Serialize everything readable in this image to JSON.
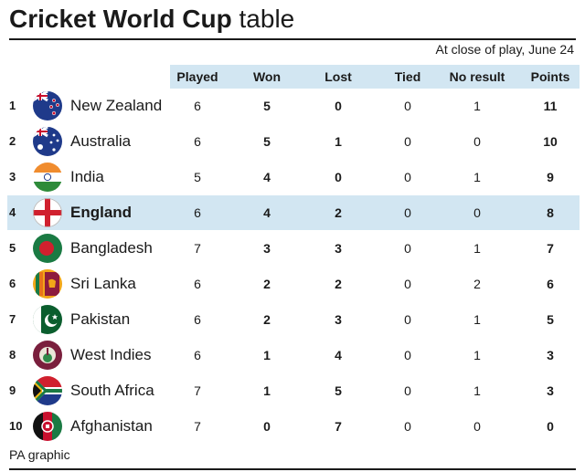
{
  "title": {
    "bold": "Cricket World Cup",
    "light": "table"
  },
  "subtitle": "At close of play, June 24",
  "columns": [
    "Played",
    "Won",
    "Lost",
    "Tied",
    "No result",
    "Points"
  ],
  "rows": [
    {
      "rank": "1",
      "team": "New Zealand",
      "flag": "new-zealand-flag-icon",
      "played": "6",
      "won": "5",
      "lost": "0",
      "tied": "0",
      "no_result": "1",
      "points": "11"
    },
    {
      "rank": "2",
      "team": "Australia",
      "flag": "australia-flag-icon",
      "played": "6",
      "won": "5",
      "lost": "1",
      "tied": "0",
      "no_result": "0",
      "points": "10"
    },
    {
      "rank": "3",
      "team": "India",
      "flag": "india-flag-icon",
      "played": "5",
      "won": "4",
      "lost": "0",
      "tied": "0",
      "no_result": "1",
      "points": "9"
    },
    {
      "rank": "4",
      "team": "England",
      "flag": "england-flag-icon",
      "played": "6",
      "won": "4",
      "lost": "2",
      "tied": "0",
      "no_result": "0",
      "points": "8",
      "highlight": true
    },
    {
      "rank": "5",
      "team": "Bangladesh",
      "flag": "bangladesh-flag-icon",
      "played": "7",
      "won": "3",
      "lost": "3",
      "tied": "0",
      "no_result": "1",
      "points": "7"
    },
    {
      "rank": "6",
      "team": "Sri Lanka",
      "flag": "sri-lanka-flag-icon",
      "played": "6",
      "won": "2",
      "lost": "2",
      "tied": "0",
      "no_result": "2",
      "points": "6"
    },
    {
      "rank": "7",
      "team": "Pakistan",
      "flag": "pakistan-flag-icon",
      "played": "6",
      "won": "2",
      "lost": "3",
      "tied": "0",
      "no_result": "1",
      "points": "5"
    },
    {
      "rank": "8",
      "team": "West Indies",
      "flag": "west-indies-flag-icon",
      "played": "6",
      "won": "1",
      "lost": "4",
      "tied": "0",
      "no_result": "1",
      "points": "3"
    },
    {
      "rank": "9",
      "team": "South Africa",
      "flag": "south-africa-flag-icon",
      "played": "7",
      "won": "1",
      "lost": "5",
      "tied": "0",
      "no_result": "1",
      "points": "3"
    },
    {
      "rank": "10",
      "team": "Afghanistan",
      "flag": "afghanistan-flag-icon",
      "played": "7",
      "won": "0",
      "lost": "7",
      "tied": "0",
      "no_result": "0",
      "points": "0"
    }
  ],
  "footer": "PA graphic",
  "colors": {
    "header_bg": "#d2e6f2",
    "highlight_bg": "#d2e6f2",
    "text": "#1a1a1a"
  }
}
